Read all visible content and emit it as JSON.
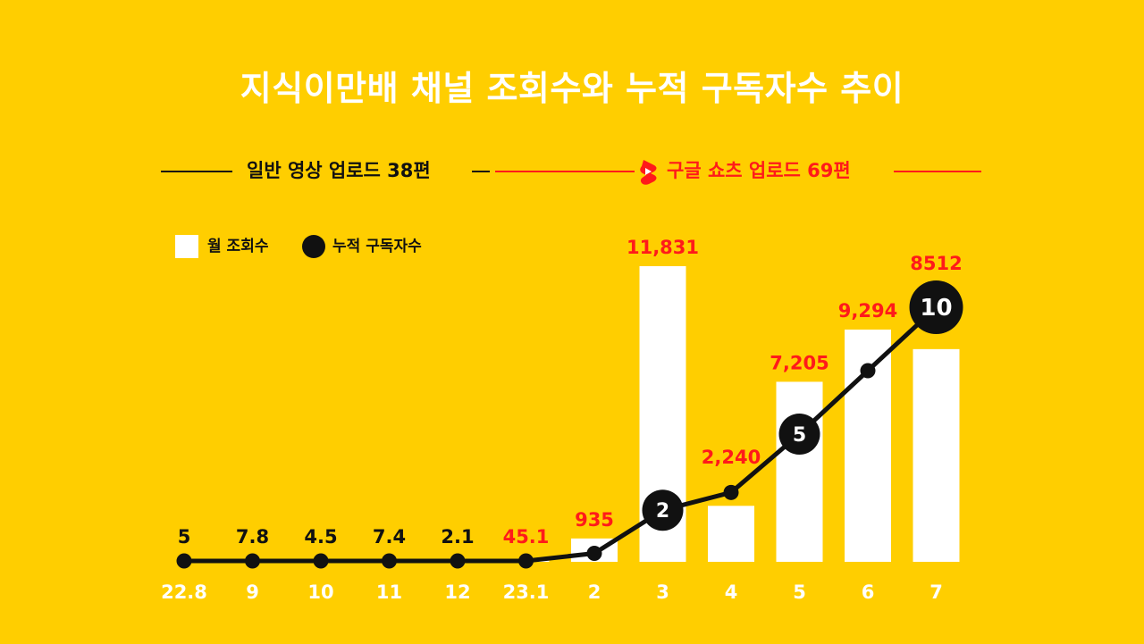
{
  "title": "지식이만배 채널 조회수와 누적 구독자수 추이",
  "phases": {
    "regular_label": "일반 영상 업로드 38편",
    "shorts_label": "구글 쇼츠 업로드 69편"
  },
  "legend": {
    "bar_label": "월 조회수",
    "line_label": "누적 구독자수"
  },
  "colors": {
    "background": "#FFCE00",
    "title": "#FFFFFF",
    "bar": "#FFFFFF",
    "line": "#111111",
    "red_label": "#FF1A1A",
    "black_label": "#111111"
  },
  "chart_data": {
    "type": "bar",
    "categories": [
      "22.8",
      "9",
      "10",
      "11",
      "12",
      "23.1",
      "2",
      "3",
      "4",
      "5",
      "6",
      "7"
    ],
    "series": [
      {
        "name": "월 조회수",
        "type": "bar",
        "values": [
          5,
          7.8,
          4.5,
          7.4,
          2.1,
          45.1,
          935,
          11831,
          2240,
          7205,
          9294,
          8512
        ]
      },
      {
        "name": "누적 구독자수",
        "type": "line",
        "values": [
          0,
          0,
          0,
          0,
          0,
          0,
          0.3,
          2,
          2.7,
          5,
          7.5,
          10
        ]
      }
    ],
    "value_labels": [
      "5",
      "7.8",
      "4.5",
      "7.4",
      "2.1",
      "45.1",
      "935",
      "11,831",
      "2,240",
      "7,205",
      "9,294",
      "8512"
    ],
    "value_label_colors": [
      "#111111",
      "#111111",
      "#111111",
      "#111111",
      "#111111",
      "#FF1A1A",
      "#FF1A1A",
      "#FF1A1A",
      "#FF1A1A",
      "#FF1A1A",
      "#FF1A1A",
      "#FF1A1A"
    ],
    "subscriber_markers": [
      {
        "index": 7,
        "label": "2"
      },
      {
        "index": 9,
        "label": "5"
      },
      {
        "index": 11,
        "label": "10"
      }
    ],
    "ylim_bar": [
      0,
      11831
    ],
    "ylim_line": [
      0,
      10
    ],
    "grid": false,
    "legend_position": "top-left"
  }
}
